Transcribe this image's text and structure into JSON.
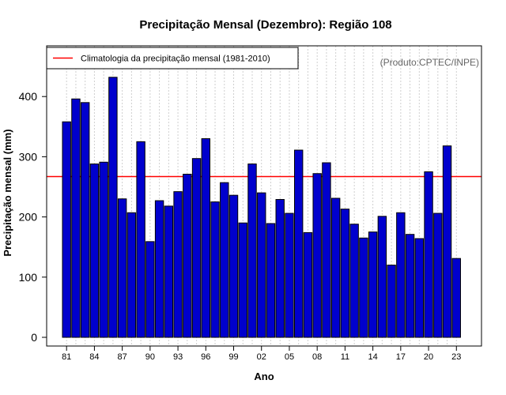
{
  "chart_data": {
    "type": "bar",
    "title": "Precipitação Mensal (Dezembro): Região 108",
    "xlabel": "Ano",
    "ylabel": "Precipitação mensal (mm)",
    "ylim": [
      0,
      480
    ],
    "yticks": [
      0,
      100,
      200,
      300,
      400
    ],
    "categories": [
      "1981",
      "1982",
      "1983",
      "1984",
      "1985",
      "1986",
      "1987",
      "1988",
      "1989",
      "1990",
      "1991",
      "1992",
      "1993",
      "1994",
      "1995",
      "1996",
      "1997",
      "1998",
      "1999",
      "2000",
      "2001",
      "2002",
      "2003",
      "2004",
      "2005",
      "2006",
      "2007",
      "2008",
      "2009",
      "2010",
      "2011",
      "2012",
      "2013",
      "2014",
      "2015",
      "2016",
      "2017",
      "2018",
      "2019",
      "2020",
      "2021",
      "2022",
      "2023"
    ],
    "values": [
      358,
      396,
      390,
      288,
      291,
      432,
      230,
      207,
      325,
      159,
      227,
      218,
      242,
      271,
      297,
      330,
      225,
      257,
      236,
      190,
      288,
      240,
      189,
      229,
      206,
      311,
      174,
      272,
      290,
      231,
      213,
      188,
      165,
      175,
      201,
      120,
      207,
      171,
      164,
      275,
      206,
      318,
      131
    ],
    "xtick_labels": [
      "81",
      "84",
      "87",
      "90",
      "93",
      "96",
      "99",
      "02",
      "05",
      "08",
      "11",
      "14",
      "17",
      "20",
      "23"
    ],
    "bar_color": "#0000CD",
    "reference_line": {
      "value": 267,
      "color": "#FF0000"
    },
    "legend": {
      "position": "top-left",
      "entries": [
        "Climatologia da precipitação mensal (1981-2010)"
      ]
    },
    "grid": true,
    "credit": "(Produto:CPTEC/INPE)"
  }
}
